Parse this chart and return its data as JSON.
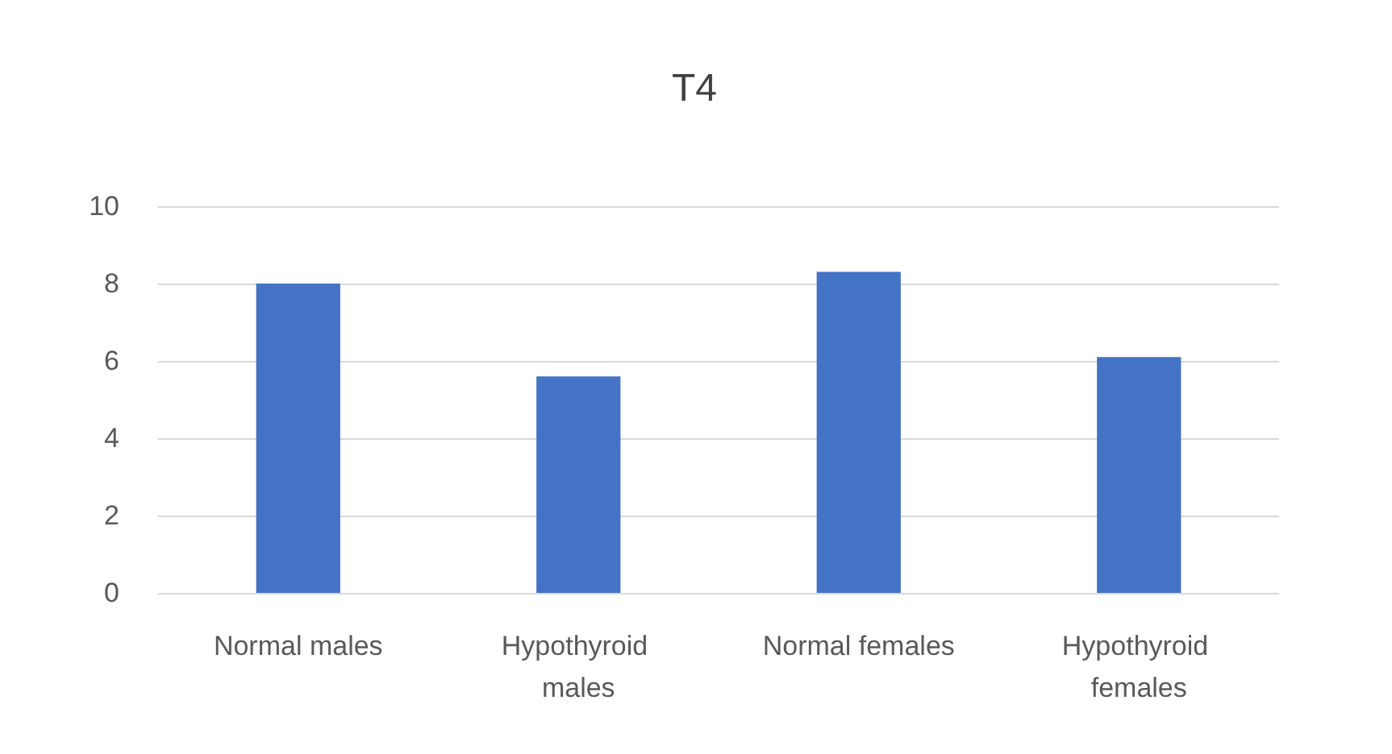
{
  "chart_data": {
    "type": "bar",
    "title": "T4",
    "categories": [
      "Normal males",
      "Hypothyroid males",
      "Normal females",
      "Hypothyroid females"
    ],
    "values": [
      8.0,
      5.6,
      8.3,
      6.1
    ],
    "color": "#4472c4",
    "ylim": [
      0,
      10
    ],
    "yticks": [
      0,
      2,
      4,
      6,
      8,
      10
    ],
    "grid": "y"
  }
}
